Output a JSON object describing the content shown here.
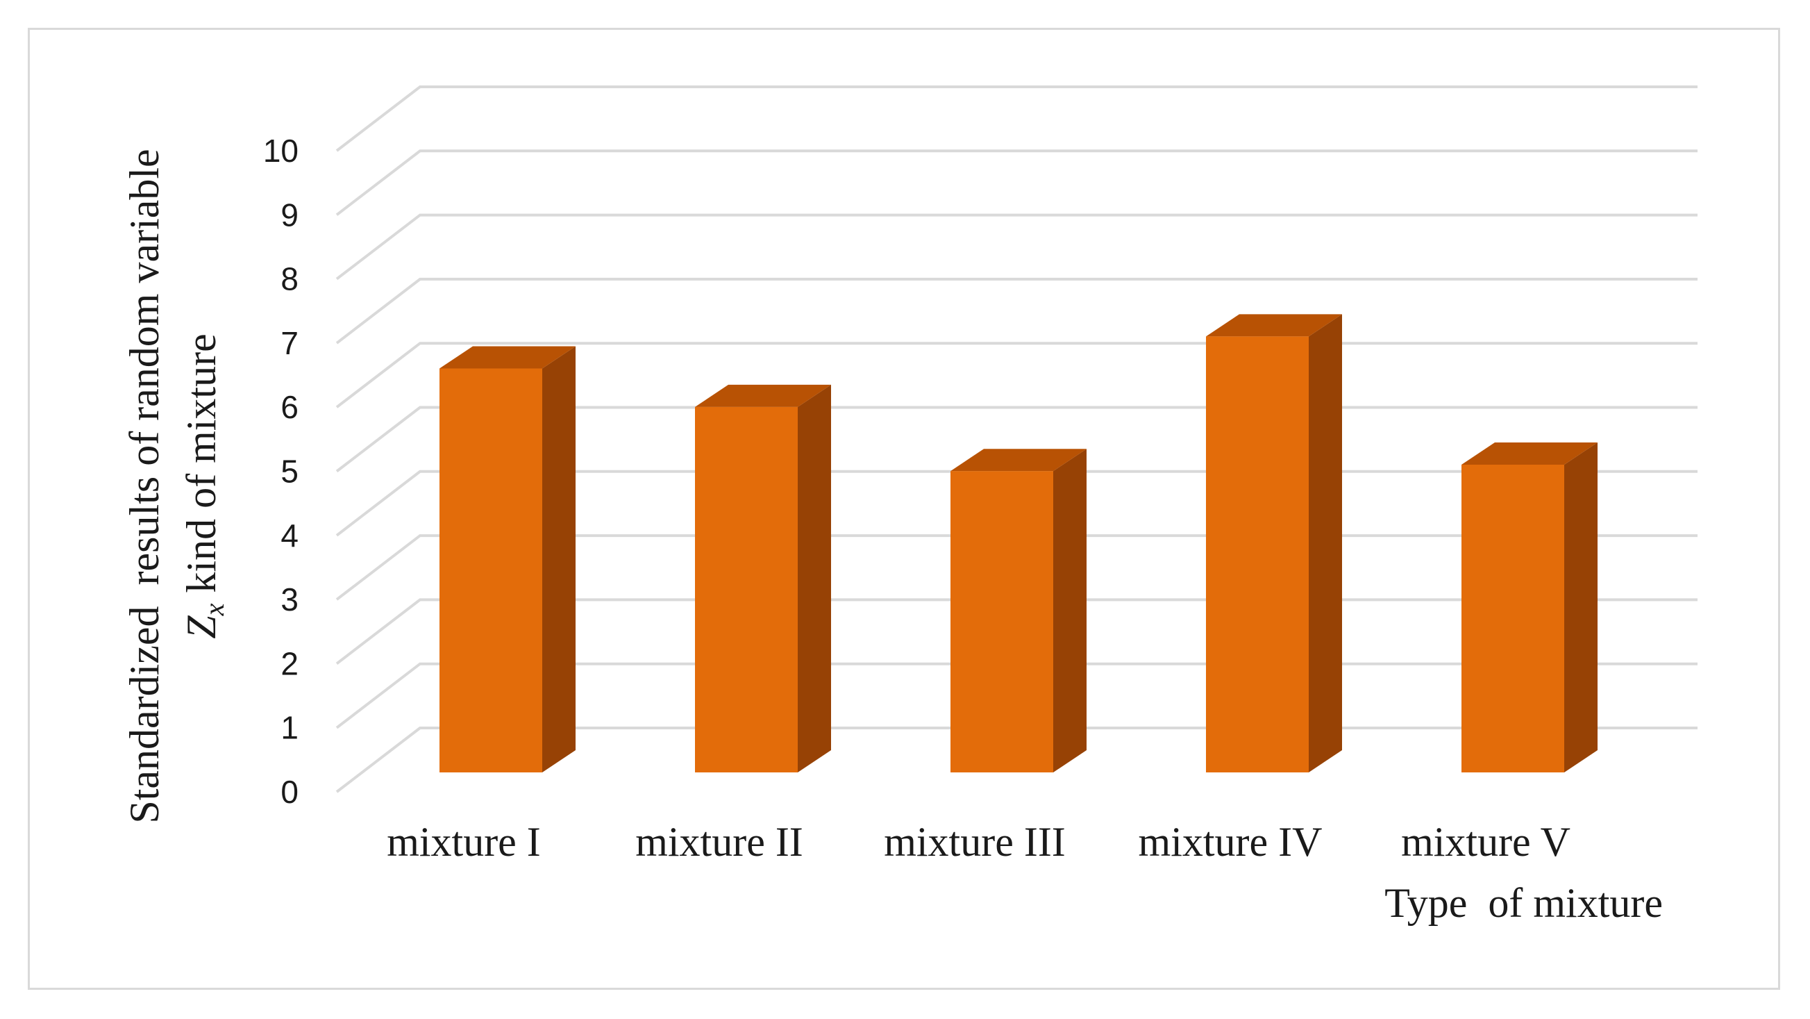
{
  "chart_data": {
    "type": "bar",
    "categories": [
      "mixture I",
      "mixture II",
      "mixture III",
      "mixture IV",
      "mixture V"
    ],
    "values": [
      6.3,
      5.7,
      4.7,
      6.8,
      4.8
    ],
    "title": "",
    "xlabel": "Type  of mixture",
    "ylabel": "Standardized  results of random variable",
    "ylabel_line2_prefix": "Z",
    "ylabel_line2_subscript": "x",
    "ylabel_line2_suffix": " kind of mixture",
    "ylim": [
      0,
      10
    ],
    "yticks": [
      "0",
      "1",
      "2",
      "3",
      "4",
      "5",
      "6",
      "7",
      "8",
      "9",
      "10"
    ],
    "grid": true,
    "legend": "none",
    "style": "3d-column",
    "colors": {
      "bar_front": "#e36c0a",
      "bar_top": "#b85204",
      "bar_side": "#974205",
      "grid": "#d9d9d9",
      "frame": "#d9d9d9"
    }
  }
}
